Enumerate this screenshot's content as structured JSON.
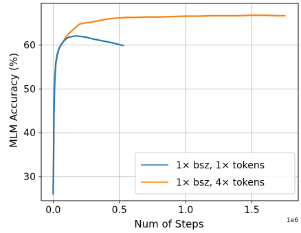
{
  "chart_data": {
    "type": "line",
    "title": "",
    "xlabel": "Num of Steps",
    "ylabel": "MLM Accuracy (%)",
    "x_scale_label": "1e6",
    "xlim": [
      -0.09,
      1.85
    ],
    "ylim": [
      24.5,
      69.5
    ],
    "grid": true,
    "legend_position": "lower-right",
    "xticks": [
      {
        "value": 0.0,
        "label": "0.0"
      },
      {
        "value": 0.5,
        "label": "0.5"
      },
      {
        "value": 1.0,
        "label": "1.0"
      },
      {
        "value": 1.5,
        "label": "1.5"
      }
    ],
    "yticks": [
      {
        "value": 30,
        "label": "30"
      },
      {
        "value": 40,
        "label": "40"
      },
      {
        "value": 50,
        "label": "50"
      },
      {
        "value": 60,
        "label": "60"
      }
    ],
    "series": [
      {
        "name": "1× bsz, 1× tokens",
        "color": "#1f77b4",
        "x": [
          0.0,
          0.003,
          0.006,
          0.01,
          0.015,
          0.02,
          0.03,
          0.04,
          0.05,
          0.06,
          0.08,
          0.1,
          0.12,
          0.15,
          0.18,
          0.2,
          0.25,
          0.3,
          0.35,
          0.4,
          0.45,
          0.5,
          0.53
        ],
        "y": [
          26.0,
          33.0,
          44.0,
          50.0,
          53.5,
          56.0,
          57.8,
          58.9,
          59.6,
          60.1,
          60.9,
          61.5,
          61.8,
          62.0,
          62.1,
          62.0,
          61.8,
          61.4,
          61.1,
          60.8,
          60.5,
          60.1,
          59.9
        ]
      },
      {
        "name": "1× bsz, 4× tokens",
        "color": "#ff7f0e",
        "x": [
          0.0,
          0.003,
          0.006,
          0.01,
          0.015,
          0.02,
          0.03,
          0.04,
          0.05,
          0.06,
          0.08,
          0.1,
          0.12,
          0.15,
          0.18,
          0.2,
          0.25,
          0.3,
          0.35,
          0.4,
          0.45,
          0.5,
          0.55,
          0.6,
          0.7,
          0.8,
          0.9,
          1.0,
          1.1,
          1.2,
          1.3,
          1.4,
          1.5,
          1.6,
          1.7,
          1.75
        ],
        "y": [
          27.0,
          34.0,
          45.0,
          50.5,
          53.5,
          55.5,
          57.5,
          58.7,
          59.5,
          60.0,
          61.0,
          62.0,
          62.7,
          63.5,
          64.3,
          64.8,
          65.1,
          65.3,
          65.6,
          65.9,
          66.1,
          66.2,
          66.3,
          66.3,
          66.4,
          66.4,
          66.5,
          66.6,
          66.6,
          66.7,
          66.7,
          66.7,
          66.8,
          66.8,
          66.7,
          66.7
        ]
      }
    ]
  }
}
